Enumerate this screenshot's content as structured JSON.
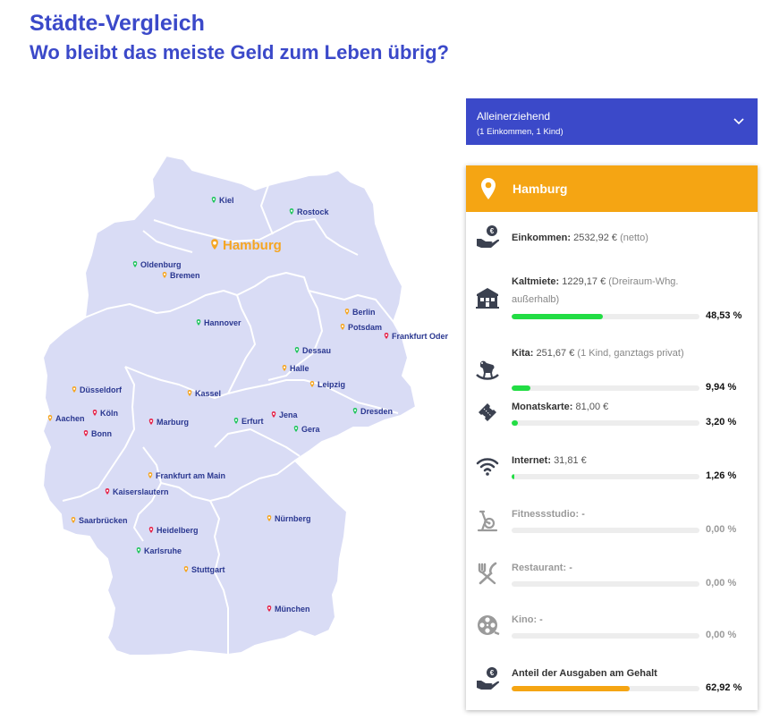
{
  "header": {
    "title": "Städte-Vergleich",
    "subtitle": "Wo bleibt das meiste Geld zum Leben übrig?"
  },
  "colors": {
    "accent": "#3b49c9",
    "orange": "#f5a513",
    "green": "#22dd44",
    "map_fill": "#d9dcf5",
    "pin_green": "#22c55e",
    "pin_orange": "#f5a623",
    "pin_red": "#e5254a"
  },
  "selector": {
    "label": "Alleinerziehend",
    "sublabel": "(1 Einkommen, 1 Kind)"
  },
  "map": {
    "highlight": "Hamburg",
    "cities": [
      {
        "name": "Kiel",
        "pin": "green"
      },
      {
        "name": "Rostock",
        "pin": "green"
      },
      {
        "name": "Hamburg",
        "pin": "orange"
      },
      {
        "name": "Oldenburg",
        "pin": "green"
      },
      {
        "name": "Bremen",
        "pin": "orange"
      },
      {
        "name": "Hannover",
        "pin": "green"
      },
      {
        "name": "Berlin",
        "pin": "orange"
      },
      {
        "name": "Potsdam",
        "pin": "orange"
      },
      {
        "name": "Frankfurt Oder",
        "pin": "red"
      },
      {
        "name": "Dessau",
        "pin": "green"
      },
      {
        "name": "Halle",
        "pin": "orange"
      },
      {
        "name": "Leipzig",
        "pin": "orange"
      },
      {
        "name": "Düsseldorf",
        "pin": "orange"
      },
      {
        "name": "Kassel",
        "pin": "orange"
      },
      {
        "name": "Aachen",
        "pin": "orange"
      },
      {
        "name": "Köln",
        "pin": "red"
      },
      {
        "name": "Bonn",
        "pin": "red"
      },
      {
        "name": "Marburg",
        "pin": "red"
      },
      {
        "name": "Erfurt",
        "pin": "green"
      },
      {
        "name": "Jena",
        "pin": "red"
      },
      {
        "name": "Gera",
        "pin": "green"
      },
      {
        "name": "Dresden",
        "pin": "green"
      },
      {
        "name": "Frankfurt am Main",
        "pin": "orange"
      },
      {
        "name": "Kaiserslautern",
        "pin": "red"
      },
      {
        "name": "Saarbrücken",
        "pin": "orange"
      },
      {
        "name": "Nürnberg",
        "pin": "orange"
      },
      {
        "name": "Heidelberg",
        "pin": "red"
      },
      {
        "name": "Karlsruhe",
        "pin": "green"
      },
      {
        "name": "Stuttgart",
        "pin": "orange"
      },
      {
        "name": "München",
        "pin": "red"
      }
    ]
  },
  "card": {
    "city": "Hamburg",
    "income": {
      "label": "Einkommen:",
      "value": "2532,92 €",
      "note": "(netto)"
    },
    "rows": [
      {
        "label": "Kaltmiete:",
        "value": "1229,17 €",
        "note": "(Dreiraum-Whg. außerhalb)",
        "pct": "48,53 %",
        "fraction": 0.4853,
        "icon": "building-icon"
      },
      {
        "label": "Kita:",
        "value": "251,67 €",
        "note": "(1 Kind, ganztags privat)",
        "pct": "9,94 %",
        "fraction": 0.0994,
        "icon": "rocking-horse-icon"
      },
      {
        "label": "Monatskarte:",
        "value": "81,00 €",
        "note": "",
        "pct": "3,20 %",
        "fraction": 0.032,
        "icon": "ticket-icon"
      },
      {
        "label": "Internet:",
        "value": "31,81 €",
        "note": "",
        "pct": "1,26 %",
        "fraction": 0.0126,
        "icon": "wifi-icon"
      },
      {
        "label": "Fitnessstudio:",
        "value": "-",
        "note": "",
        "pct": "0,00 %",
        "fraction": 0,
        "icon": "exercise-bike-icon"
      },
      {
        "label": "Restaurant:",
        "value": "-",
        "note": "",
        "pct": "0,00 %",
        "fraction": 0,
        "icon": "fork-knife-icon"
      },
      {
        "label": "Kino:",
        "value": "-",
        "note": "",
        "pct": "0,00 %",
        "fraction": 0,
        "icon": "film-reel-icon"
      }
    ],
    "total": {
      "label": "Anteil der Ausgaben am Gehalt",
      "pct": "62,92 %",
      "fraction": 0.6292,
      "icon": "money-hand-icon"
    }
  }
}
